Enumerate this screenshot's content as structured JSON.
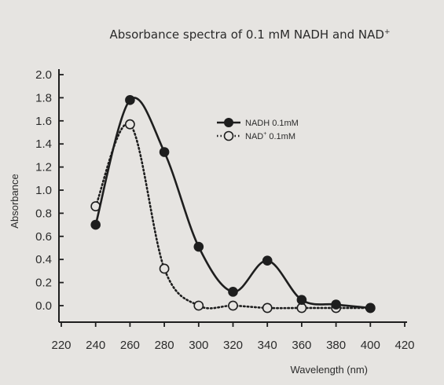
{
  "chart_data": {
    "type": "line",
    "title": "Absorbance spectra of 0.1 mM NADH and NAD",
    "title_superscript": "+",
    "xlabel": "Wavelength (nm)",
    "ylabel": "Absorbance",
    "xlim": [
      220,
      420
    ],
    "ylim": [
      0.0,
      2.0
    ],
    "x_ticks": [
      "220",
      "240",
      "260",
      "280",
      "300",
      "320",
      "340",
      "360",
      "380",
      "400",
      "420"
    ],
    "y_ticks": [
      "0.0",
      "0.2",
      "0.4",
      "0.6",
      "0.8",
      "1.0",
      "1.2",
      "1.4",
      "1.6",
      "1.8",
      "2.0"
    ],
    "grid": false,
    "legend_position": "top-right",
    "series": [
      {
        "name": "NADH 0.1mM",
        "style": "solid",
        "marker": "filled-circle",
        "color": "#1e1e1e",
        "x": [
          240,
          260,
          280,
          300,
          320,
          340,
          360,
          380,
          400
        ],
        "y": [
          0.7,
          1.78,
          1.33,
          0.51,
          0.12,
          0.39,
          0.05,
          0.01,
          -0.02
        ]
      },
      {
        "name": "NAD",
        "name_superscript": "+",
        "name_suffix": " 0.1mM",
        "style": "dotted",
        "marker": "open-circle",
        "color": "#1e1e1e",
        "x": [
          240,
          260,
          280,
          300,
          320,
          340,
          360,
          380,
          400
        ],
        "y": [
          0.86,
          1.57,
          0.32,
          0.0,
          0.0,
          -0.02,
          -0.02,
          -0.02,
          -0.02
        ]
      }
    ]
  }
}
